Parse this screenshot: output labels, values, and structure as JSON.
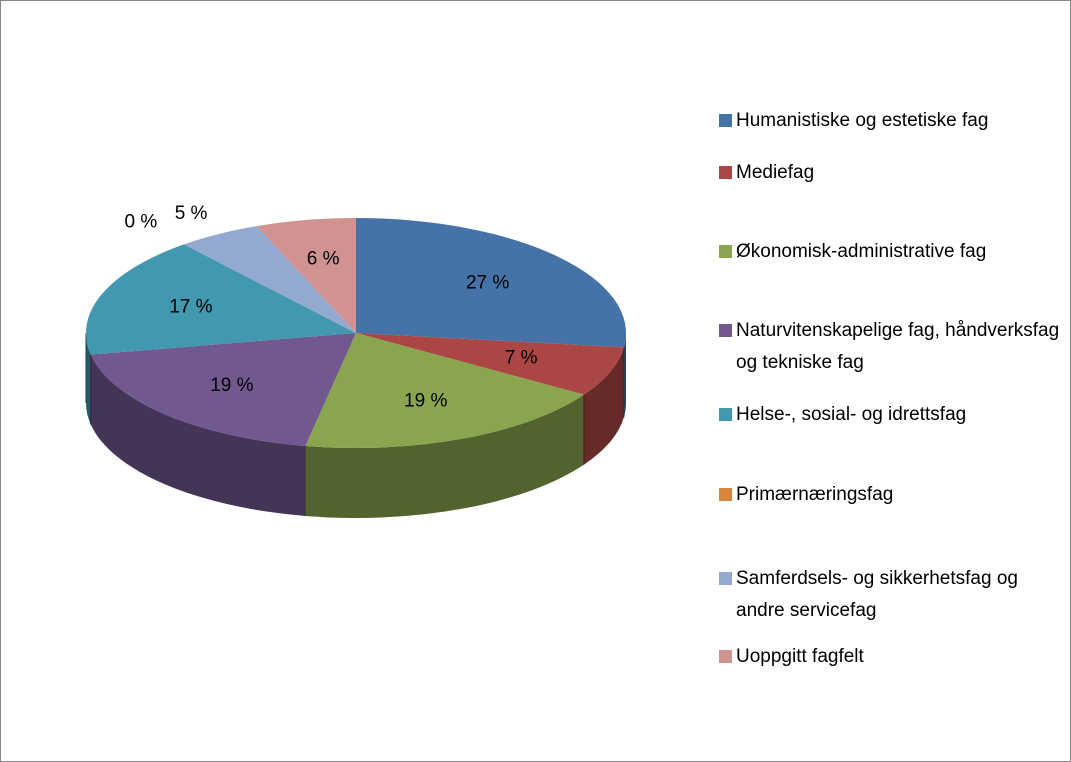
{
  "chart_data": {
    "type": "pie",
    "categories": [
      "Humanistiske og estetiske fag",
      "Mediefag",
      "Økonomisk-administrative fag",
      "Naturvitenskapelige fag, håndverksfag og tekniske fag",
      "Helse-, sosial- og idrettsfag",
      "Primærnæringsfag",
      "Samferdsels- og sikkerhetsfag og andre servicefag",
      "Uoppgitt fagfelt"
    ],
    "values": [
      27,
      7,
      19,
      19,
      17,
      0,
      5,
      6
    ],
    "value_labels": [
      "27 %",
      "7 %",
      "19 %",
      "19 %",
      "17 %",
      "0 %",
      "5 %",
      "6 %"
    ],
    "colors": [
      "#4572a7",
      "#aa4643",
      "#89a54e",
      "#71588f",
      "#4198af",
      "#db843d",
      "#93a9cf",
      "#d19392"
    ],
    "legend": "right"
  }
}
